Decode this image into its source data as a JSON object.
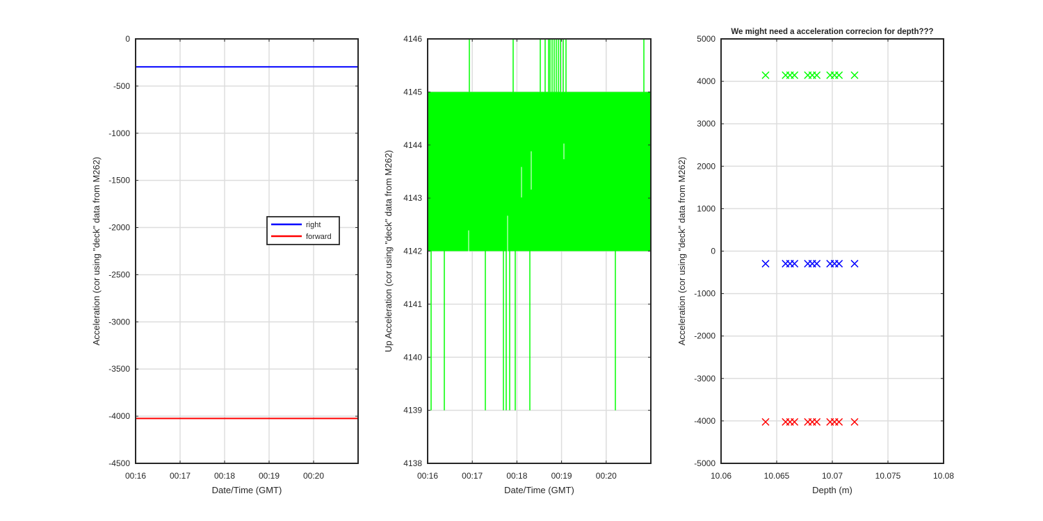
{
  "chart_data": [
    {
      "type": "line",
      "title": "",
      "xlabel": "Date/Time (GMT)",
      "ylabel": "Acceleration (cor using \"deck\" data from M262)",
      "xlim": [
        "00:16",
        "00:21"
      ],
      "ylim": [
        -4500,
        0
      ],
      "x_tick_labels": [
        "00:16",
        "00:17",
        "00:18",
        "00:19",
        "00:20"
      ],
      "y_ticks": [
        0,
        -500,
        -1000,
        -1500,
        -2000,
        -2500,
        -3000,
        -3500,
        -4000,
        -4500
      ],
      "grid": true,
      "legend_position": "right-center",
      "series": [
        {
          "name": "right",
          "color": "#0000ff",
          "x": [
            "00:16",
            "00:21"
          ],
          "values": [
            -296,
            -296
          ]
        },
        {
          "name": "forward",
          "color": "#ff0000",
          "x": [
            "00:16",
            "00:21"
          ],
          "values": [
            -4024,
            -4024
          ]
        }
      ]
    },
    {
      "type": "line",
      "title": "",
      "xlabel": "Date/Time (GMT)",
      "ylabel": "Up Acceleration (cor using \"deck\" data from M262)",
      "xlim": [
        "00:16",
        "00:21"
      ],
      "ylim": [
        4138,
        4146
      ],
      "x_tick_labels": [
        "00:16",
        "00:17",
        "00:18",
        "00:19",
        "00:20"
      ],
      "y_ticks": [
        4138,
        4139,
        4140,
        4141,
        4142,
        4143,
        4144,
        4145,
        4146
      ],
      "grid": true,
      "series": [
        {
          "color": "#00ff00",
          "band": [
            4142,
            4145
          ],
          "spikes_high": [
            4146
          ],
          "spikes_low": [
            4139
          ]
        }
      ]
    },
    {
      "type": "scatter",
      "title": "We might need a acceleration correcion for depth???",
      "xlabel": "Depth (m)",
      "ylabel": "Acceleration (cor using \"deck\" data from M262)",
      "xlim": [
        10.06,
        10.08
      ],
      "ylim": [
        -5000,
        5000
      ],
      "x_ticks": [
        10.06,
        10.065,
        10.07,
        10.075,
        10.08
      ],
      "y_ticks": [
        5000,
        4000,
        3000,
        2000,
        1000,
        0,
        -1000,
        -2000,
        -3000,
        -4000,
        -5000
      ],
      "marker": "x",
      "grid": true,
      "series": [
        {
          "color": "#00ff00",
          "x": [
            10.064,
            10.0658,
            10.0662,
            10.0666,
            10.0678,
            10.0682,
            10.0686,
            10.0698,
            10.0702,
            10.0706,
            10.072
          ],
          "values": [
            4145,
            4145,
            4145,
            4145,
            4145,
            4145,
            4145,
            4145,
            4145,
            4145,
            4145
          ]
        },
        {
          "color": "#0000ff",
          "x": [
            10.064,
            10.0658,
            10.0662,
            10.0666,
            10.0678,
            10.0682,
            10.0686,
            10.0698,
            10.0702,
            10.0706,
            10.072
          ],
          "values": [
            -296,
            -296,
            -296,
            -296,
            -296,
            -296,
            -296,
            -296,
            -296,
            -296,
            -296
          ]
        },
        {
          "color": "#ff0000",
          "x": [
            10.064,
            10.0658,
            10.0662,
            10.0666,
            10.0678,
            10.0682,
            10.0686,
            10.0698,
            10.0702,
            10.0706,
            10.072
          ],
          "values": [
            -4024,
            -4024,
            -4024,
            -4024,
            -4024,
            -4024,
            -4024,
            -4024,
            -4024,
            -4024,
            -4024
          ]
        }
      ]
    }
  ]
}
